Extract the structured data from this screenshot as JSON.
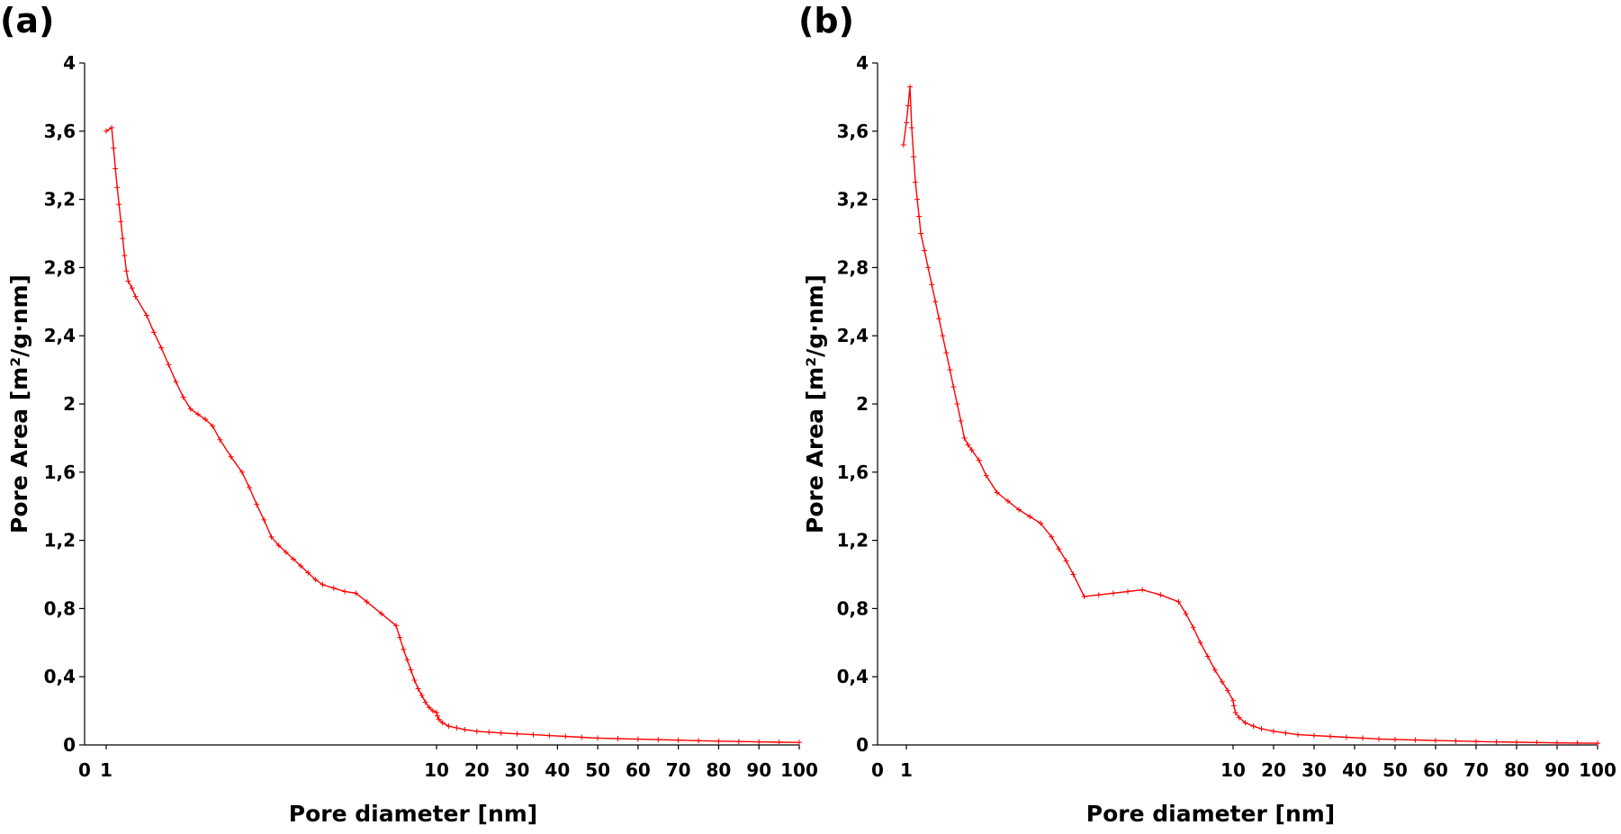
{
  "figure": {
    "panels": [
      {
        "label": "(a)"
      },
      {
        "label": "(b)"
      }
    ]
  },
  "chart_data": [
    {
      "type": "line",
      "panel_label": "(a)",
      "title": "",
      "xlabel": "Pore diameter [nm]",
      "ylabel": "Pore Area [m²/g·nm]",
      "xlim": [
        0,
        100
      ],
      "ylim": [
        0,
        4
      ],
      "x_scale": "piecewise: 0-10 nm expanded, 10-100 nm compressed",
      "x_ticks": [
        {
          "value": 0,
          "label": "0"
        },
        {
          "value": 1,
          "label": "1"
        },
        {
          "value": 10,
          "label": "10"
        },
        {
          "value": 20,
          "label": "20"
        },
        {
          "value": 30,
          "label": "30"
        },
        {
          "value": 40,
          "label": "40"
        },
        {
          "value": 50,
          "label": "50"
        },
        {
          "value": 60,
          "label": "60"
        },
        {
          "value": 70,
          "label": "70"
        },
        {
          "value": 80,
          "label": "80"
        },
        {
          "value": 90,
          "label": "90"
        },
        {
          "value": 100,
          "label": "100"
        }
      ],
      "y_ticks": [
        {
          "value": 0,
          "label": "0"
        },
        {
          "value": 0.4,
          "label": "0,4"
        },
        {
          "value": 0.8,
          "label": "0,8"
        },
        {
          "value": 1.2,
          "label": "1,2"
        },
        {
          "value": 1.6,
          "label": "1,6"
        },
        {
          "value": 2.0,
          "label": "2"
        },
        {
          "value": 2.4,
          "label": "2,4"
        },
        {
          "value": 2.8,
          "label": "2,8"
        },
        {
          "value": 3.2,
          "label": "3,2"
        },
        {
          "value": 3.6,
          "label": "3,6"
        },
        {
          "value": 4.0,
          "label": "4"
        }
      ],
      "grid": false,
      "color": "#ff0000",
      "series": [
        {
          "x": [
            1.0,
            1.15,
            1.2,
            1.25,
            1.3,
            1.35,
            1.4,
            1.45,
            1.5,
            1.55,
            1.6,
            1.7,
            1.8,
            2.1,
            2.3,
            2.5,
            2.7,
            2.9,
            3.1,
            3.3,
            3.5,
            3.7,
            3.9,
            4.1,
            4.4,
            4.7,
            4.9,
            5.1,
            5.3,
            5.5,
            5.7,
            5.9,
            6.1,
            6.3,
            6.5,
            6.7,
            6.9,
            7.2,
            7.5,
            7.8,
            8.1,
            8.5,
            8.9,
            9.0,
            9.1,
            9.2,
            9.3,
            9.4,
            9.5,
            9.6,
            9.7,
            9.8,
            9.9,
            10.0,
            10.2,
            10.6,
            11.5,
            13.0,
            15.0,
            17.0,
            20.0,
            23.0,
            26.0,
            30.0,
            34.0,
            38.0,
            42.0,
            46.0,
            50.0,
            55.0,
            60.0,
            65.0,
            70.0,
            75.0,
            80.0,
            85.0,
            90.0,
            95.0,
            100.0
          ],
          "y": [
            3.6,
            3.62,
            3.5,
            3.38,
            3.27,
            3.17,
            3.07,
            2.97,
            2.87,
            2.78,
            2.72,
            2.68,
            2.63,
            2.52,
            2.42,
            2.33,
            2.23,
            2.13,
            2.04,
            1.97,
            1.94,
            1.91,
            1.87,
            1.79,
            1.69,
            1.6,
            1.51,
            1.41,
            1.32,
            1.22,
            1.17,
            1.13,
            1.09,
            1.05,
            1.01,
            0.97,
            0.94,
            0.92,
            0.9,
            0.89,
            0.84,
            0.77,
            0.7,
            0.63,
            0.56,
            0.5,
            0.44,
            0.38,
            0.33,
            0.29,
            0.25,
            0.22,
            0.2,
            0.19,
            0.17,
            0.15,
            0.13,
            0.11,
            0.1,
            0.09,
            0.08,
            0.075,
            0.07,
            0.065,
            0.06,
            0.055,
            0.05,
            0.045,
            0.04,
            0.037,
            0.034,
            0.031,
            0.028,
            0.025,
            0.022,
            0.02,
            0.018,
            0.016,
            0.015
          ]
        }
      ]
    },
    {
      "type": "line",
      "panel_label": "(b)",
      "title": "",
      "xlabel": "Pore diameter [nm]",
      "ylabel": "Pore Area [m²/g·nm]",
      "xlim": [
        0,
        100
      ],
      "ylim": [
        0,
        4
      ],
      "x_scale": "piecewise: 0-10 nm expanded, 10-100 nm compressed",
      "x_ticks": [
        {
          "value": 0,
          "label": "0"
        },
        {
          "value": 1,
          "label": "1"
        },
        {
          "value": 10,
          "label": "10"
        },
        {
          "value": 20,
          "label": "20"
        },
        {
          "value": 30,
          "label": "30"
        },
        {
          "value": 40,
          "label": "40"
        },
        {
          "value": 50,
          "label": "50"
        },
        {
          "value": 60,
          "label": "60"
        },
        {
          "value": 70,
          "label": "70"
        },
        {
          "value": 80,
          "label": "80"
        },
        {
          "value": 90,
          "label": "90"
        },
        {
          "value": 100,
          "label": "100"
        }
      ],
      "y_ticks": [
        {
          "value": 0,
          "label": "0"
        },
        {
          "value": 0.4,
          "label": "0,4"
        },
        {
          "value": 0.8,
          "label": "0,8"
        },
        {
          "value": 1.2,
          "label": "1,2"
        },
        {
          "value": 1.6,
          "label": "1,6"
        },
        {
          "value": 2.0,
          "label": "2"
        },
        {
          "value": 2.4,
          "label": "2,4"
        },
        {
          "value": 2.8,
          "label": "2,8"
        },
        {
          "value": 3.2,
          "label": "3,2"
        },
        {
          "value": 3.6,
          "label": "3,6"
        },
        {
          "value": 4.0,
          "label": "4"
        }
      ],
      "grid": false,
      "color": "#ff0000",
      "series": [
        {
          "x": [
            0.9,
            1.0,
            1.05,
            1.1,
            1.15,
            1.2,
            1.25,
            1.3,
            1.35,
            1.4,
            1.5,
            1.6,
            1.7,
            1.8,
            1.9,
            2.0,
            2.1,
            2.2,
            2.3,
            2.4,
            2.5,
            2.6,
            2.7,
            2.8,
            3.0,
            3.2,
            3.5,
            3.8,
            4.1,
            4.4,
            4.7,
            5.0,
            5.2,
            5.4,
            5.6,
            5.9,
            6.3,
            6.7,
            7.1,
            7.5,
            8.0,
            8.5,
            8.7,
            8.9,
            9.1,
            9.3,
            9.5,
            9.7,
            9.85,
            10.0,
            10.2,
            10.6,
            11.5,
            13.0,
            15.0,
            17.0,
            20.0,
            23.0,
            26.0,
            30.0,
            34.0,
            38.0,
            42.0,
            46.0,
            50.0,
            55.0,
            60.0,
            65.0,
            70.0,
            75.0,
            80.0,
            85.0,
            90.0,
            95.0,
            100.0
          ],
          "y": [
            3.52,
            3.65,
            3.75,
            3.86,
            3.62,
            3.45,
            3.3,
            3.2,
            3.1,
            3.0,
            2.9,
            2.8,
            2.7,
            2.6,
            2.5,
            2.4,
            2.3,
            2.2,
            2.1,
            2.0,
            1.9,
            1.8,
            1.76,
            1.73,
            1.67,
            1.58,
            1.48,
            1.43,
            1.38,
            1.34,
            1.3,
            1.22,
            1.15,
            1.08,
            1.0,
            0.87,
            0.88,
            0.89,
            0.9,
            0.91,
            0.88,
            0.84,
            0.77,
            0.69,
            0.6,
            0.52,
            0.44,
            0.37,
            0.32,
            0.26,
            0.23,
            0.19,
            0.16,
            0.13,
            0.11,
            0.095,
            0.08,
            0.07,
            0.06,
            0.055,
            0.05,
            0.045,
            0.04,
            0.035,
            0.032,
            0.029,
            0.026,
            0.023,
            0.02,
            0.018,
            0.016,
            0.014,
            0.012,
            0.011,
            0.01
          ]
        }
      ]
    }
  ]
}
